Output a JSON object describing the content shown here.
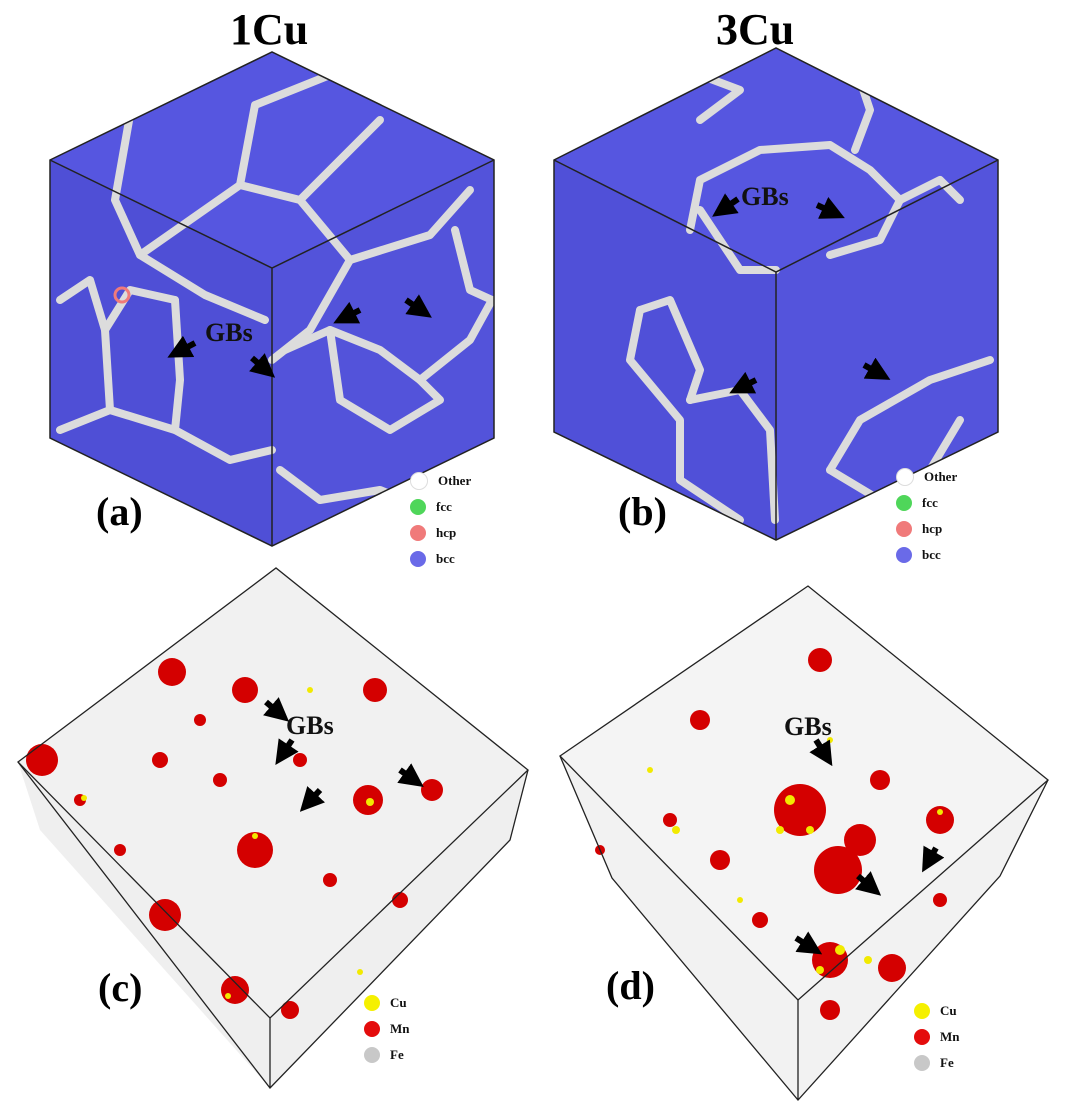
{
  "titles": {
    "left": "1Cu",
    "right": "3Cu"
  },
  "panels": {
    "a": {
      "label": "(a)"
    },
    "b": {
      "label": "(b)"
    },
    "c": {
      "label": "(c)"
    },
    "d": {
      "label": "(d)"
    }
  },
  "annotation": "GBs",
  "legend_structure": [
    {
      "label": "Other",
      "color": "#ffffff"
    },
    {
      "label": "fcc",
      "color": "#4fd65a"
    },
    {
      "label": "hcp",
      "color": "#f07a7a"
    },
    {
      "label": "bcc",
      "color": "#6a6ae8"
    }
  ],
  "legend_elements": [
    {
      "label": "Cu",
      "color": "#f5f000"
    },
    {
      "label": "Mn",
      "color": "#e40c0c"
    },
    {
      "label": "Fe",
      "color": "#c8c8c8"
    }
  ],
  "colors": {
    "bcc_face_top": "#5656e0",
    "bcc_face_left": "#5050d8",
    "bcc_face_right": "#5353dc",
    "grain_boundary": "#dcdcdc",
    "mn_cluster": "#d40000",
    "cu_atom": "#f2ea00",
    "fe_atom": "#dedede"
  }
}
